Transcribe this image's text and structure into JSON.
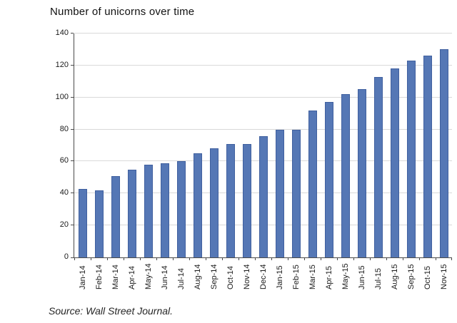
{
  "chart_data": {
    "type": "bar",
    "title": "Number of unicorns over time",
    "source_note": "Source: Wall Street Journal.",
    "xlabel": "",
    "ylabel": "",
    "categories": [
      "Jan-14",
      "Feb-14",
      "Mar-14",
      "Apr-14",
      "May-14",
      "Jun-14",
      "Jul-14",
      "Aug-14",
      "Sep-14",
      "Oct-14",
      "Nov-14",
      "Dec-14",
      "Jan-15",
      "Feb-15",
      "Mar-15",
      "Apr-15",
      "May-15",
      "Jun-15",
      "Jul-15",
      "Aug-15",
      "Sep-15",
      "Oct-15",
      "Nov-15"
    ],
    "values": [
      43,
      42,
      51,
      55,
      58,
      59,
      60,
      65,
      68,
      71,
      71,
      76,
      80,
      80,
      92,
      97,
      102,
      105,
      113,
      118,
      123,
      126,
      130
    ],
    "ylim": [
      0,
      140
    ],
    "yticks": [
      0,
      20,
      40,
      60,
      80,
      100,
      120,
      140
    ],
    "grid": "horizontal",
    "legend": "none",
    "x_label_rotation_deg": -90,
    "colors": {
      "bar_fill": "#5577b5",
      "bar_border": "#40609f",
      "gridline": "#d9d9d9",
      "axis": "#4a4a4a",
      "text": "#1a1a1a"
    }
  }
}
